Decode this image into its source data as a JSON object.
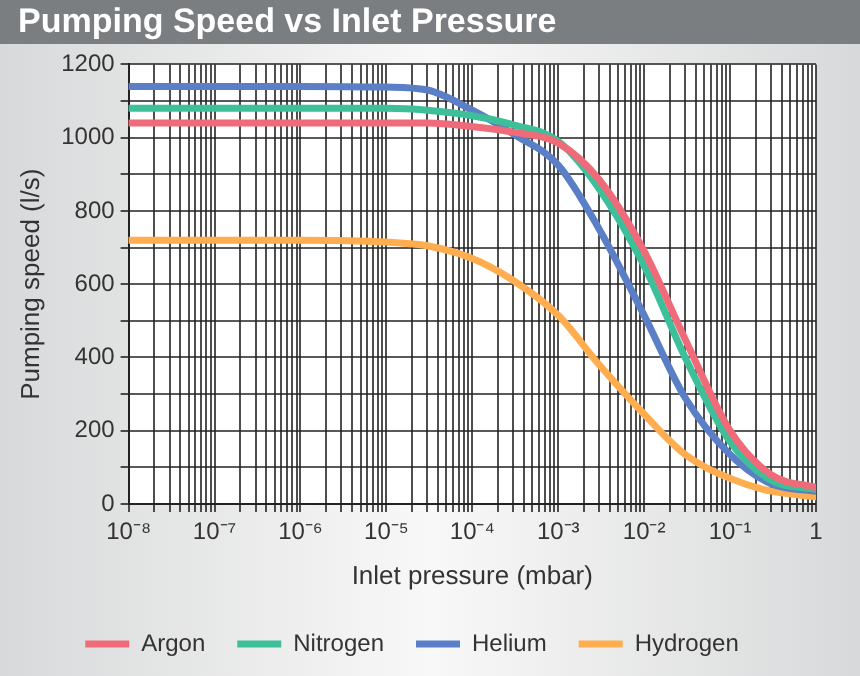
{
  "chart_data": {
    "type": "line",
    "title": "Pumping Speed vs Inlet Pressure",
    "xlabel": "Inlet pressure (mbar)",
    "ylabel": "Pumping speed (l/s)",
    "log": "x",
    "grid": true,
    "legend": "bottom",
    "marker": "none",
    "line_style": "solid",
    "xlim": [
      1e-08,
      1
    ],
    "ylim": [
      0,
      1200
    ],
    "xticks": [
      {
        "value": 1e-08,
        "label": "10⁻⁸"
      },
      {
        "value": 2e-08,
        "label": null
      },
      {
        "value": 3e-08,
        "label": null
      },
      {
        "value": 4e-08,
        "label": null
      },
      {
        "value": 5e-08,
        "label": null
      },
      {
        "value": 6e-08,
        "label": null
      },
      {
        "value": 7e-08,
        "label": null
      },
      {
        "value": 8e-08,
        "label": null
      },
      {
        "value": 9e-08,
        "label": null
      },
      {
        "value": 1e-07,
        "label": "10⁻⁷"
      },
      {
        "value": 2e-07,
        "label": null
      },
      {
        "value": 3e-07,
        "label": null
      },
      {
        "value": 4e-07,
        "label": null
      },
      {
        "value": 5e-07,
        "label": null
      },
      {
        "value": 6e-07,
        "label": null
      },
      {
        "value": 7e-07,
        "label": null
      },
      {
        "value": 8e-07,
        "label": null
      },
      {
        "value": 9e-07,
        "label": null
      },
      {
        "value": 1e-06,
        "label": "10⁻⁶"
      },
      {
        "value": 2e-06,
        "label": null
      },
      {
        "value": 3e-06,
        "label": null
      },
      {
        "value": 4e-06,
        "label": null
      },
      {
        "value": 5e-06,
        "label": null
      },
      {
        "value": 6e-06,
        "label": null
      },
      {
        "value": 7e-06,
        "label": null
      },
      {
        "value": 8e-06,
        "label": null
      },
      {
        "value": 9e-06,
        "label": null
      },
      {
        "value": 1e-05,
        "label": "10⁻⁵"
      },
      {
        "value": 2e-05,
        "label": null
      },
      {
        "value": 3e-05,
        "label": null
      },
      {
        "value": 4e-05,
        "label": null
      },
      {
        "value": 5e-05,
        "label": null
      },
      {
        "value": 6e-05,
        "label": null
      },
      {
        "value": 7e-05,
        "label": null
      },
      {
        "value": 8e-05,
        "label": null
      },
      {
        "value": 9e-05,
        "label": null
      },
      {
        "value": 0.0001,
        "label": "10⁻⁴"
      },
      {
        "value": 0.0002,
        "label": null
      },
      {
        "value": 0.0003,
        "label": null
      },
      {
        "value": 0.0004,
        "label": null
      },
      {
        "value": 0.0005,
        "label": null
      },
      {
        "value": 0.0006,
        "label": null
      },
      {
        "value": 0.0007,
        "label": null
      },
      {
        "value": 0.0008,
        "label": null
      },
      {
        "value": 0.0009,
        "label": null
      },
      {
        "value": 0.001,
        "label": "10⁻³"
      },
      {
        "value": 0.002,
        "label": null
      },
      {
        "value": 0.003,
        "label": null
      },
      {
        "value": 0.004,
        "label": null
      },
      {
        "value": 0.005,
        "label": null
      },
      {
        "value": 0.006,
        "label": null
      },
      {
        "value": 0.007,
        "label": null
      },
      {
        "value": 0.008,
        "label": null
      },
      {
        "value": 0.009,
        "label": null
      },
      {
        "value": 0.01,
        "label": "10⁻²"
      },
      {
        "value": 0.02,
        "label": null
      },
      {
        "value": 0.03,
        "label": null
      },
      {
        "value": 0.04,
        "label": null
      },
      {
        "value": 0.05,
        "label": null
      },
      {
        "value": 0.06,
        "label": null
      },
      {
        "value": 0.07,
        "label": null
      },
      {
        "value": 0.08,
        "label": null
      },
      {
        "value": 0.09,
        "label": null
      },
      {
        "value": 0.1,
        "label": "10⁻¹"
      },
      {
        "value": 0.2,
        "label": null
      },
      {
        "value": 0.3,
        "label": null
      },
      {
        "value": 0.4,
        "label": null
      },
      {
        "value": 0.5,
        "label": null
      },
      {
        "value": 0.6,
        "label": null
      },
      {
        "value": 0.7,
        "label": null
      },
      {
        "value": 0.8,
        "label": null
      },
      {
        "value": 0.9,
        "label": null
      },
      1
    ],
    "yticks": [
      0,
      {
        "value": 100,
        "label": null
      },
      200,
      {
        "value": 300,
        "label": null
      },
      400,
      {
        "value": 500,
        "label": null
      },
      600,
      {
        "value": 700,
        "label": null
      },
      800,
      {
        "value": 900,
        "label": null
      },
      1000,
      {
        "value": 1100,
        "label": null
      },
      1200
    ],
    "x": [
      1e-08,
      1e-06,
      1e-05,
      3e-05,
      0.0001,
      0.0003,
      0.001,
      0.003,
      0.01,
      0.03,
      0.1,
      0.3,
      1
    ],
    "series": [
      {
        "name": "Argon",
        "color": "#f06b7a",
        "values": [
          1040,
          1040,
          1040,
          1040,
          1030,
          1015,
          985,
          885,
          690,
          450,
          200,
          80,
          45
        ]
      },
      {
        "name": "Nitrogen",
        "color": "#3dbf9a",
        "values": [
          1080,
          1080,
          1080,
          1075,
          1060,
          1035,
          990,
          860,
          650,
          400,
          170,
          65,
          40
        ]
      },
      {
        "name": "Helium",
        "color": "#5b7fc7",
        "values": [
          1140,
          1140,
          1138,
          1130,
          1075,
          1010,
          925,
          750,
          515,
          290,
          135,
          55,
          35
        ]
      },
      {
        "name": "Hydrogen",
        "color": "#ffad4f",
        "values": [
          720,
          720,
          715,
          705,
          670,
          610,
          515,
          380,
          245,
          135,
          70,
          35,
          20
        ]
      }
    ]
  }
}
